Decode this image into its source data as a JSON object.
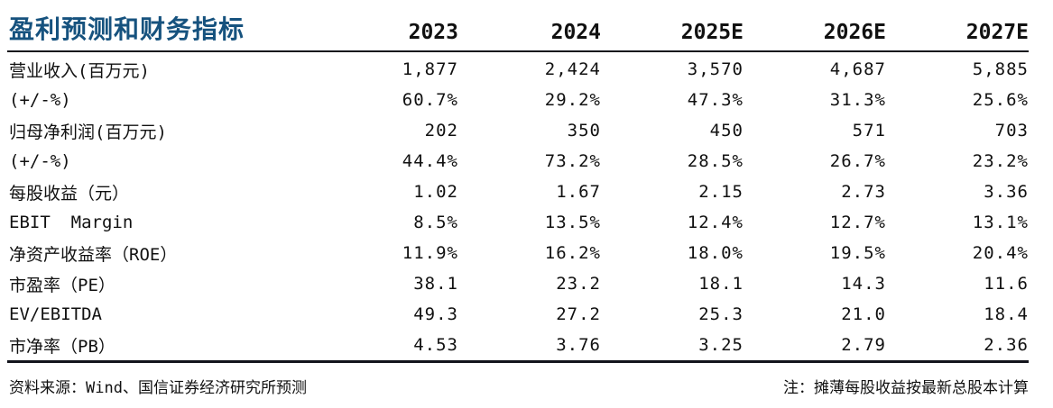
{
  "title": "盈利预测和财务指标",
  "columns": [
    "2023",
    "2024",
    "2025E",
    "2026E",
    "2027E"
  ],
  "rows": [
    {
      "label": "营业收入(百万元)",
      "values": [
        "1,877",
        "2,424",
        "3,570",
        "4,687",
        "5,885"
      ]
    },
    {
      "label": "(+/-%)",
      "values": [
        "60.7%",
        "29.2%",
        "47.3%",
        "31.3%",
        "25.6%"
      ]
    },
    {
      "label": "归母净利润(百万元)",
      "values": [
        "202",
        "350",
        "450",
        "571",
        "703"
      ]
    },
    {
      "label": "(+/-%)",
      "values": [
        "44.4%",
        "73.2%",
        "28.5%",
        "26.7%",
        "23.2%"
      ]
    },
    {
      "label": "每股收益（元）",
      "values": [
        "1.02",
        "1.67",
        "2.15",
        "2.73",
        "3.36"
      ]
    },
    {
      "label": "EBIT  Margin",
      "values": [
        "8.5%",
        "13.5%",
        "12.4%",
        "12.7%",
        "13.1%"
      ]
    },
    {
      "label": "净资产收益率（ROE）",
      "values": [
        "11.9%",
        "16.2%",
        "18.0%",
        "19.5%",
        "20.4%"
      ]
    },
    {
      "label": "市盈率（PE）",
      "values": [
        "38.1",
        "23.2",
        "18.1",
        "14.3",
        "11.6"
      ]
    },
    {
      "label": "EV/EBITDA",
      "values": [
        "49.3",
        "27.2",
        "25.3",
        "21.0",
        "18.4"
      ]
    },
    {
      "label": "市净率（PB）",
      "values": [
        "4.53",
        "3.76",
        "3.25",
        "2.79",
        "2.36"
      ]
    }
  ],
  "footer": {
    "source": "资料来源：Wind、国信证券经济研究所预测",
    "note": "注：摊薄每股收益按最新总股本计算"
  },
  "colors": {
    "title": "#16527e",
    "rule": "#13141c",
    "text": "#111111"
  }
}
